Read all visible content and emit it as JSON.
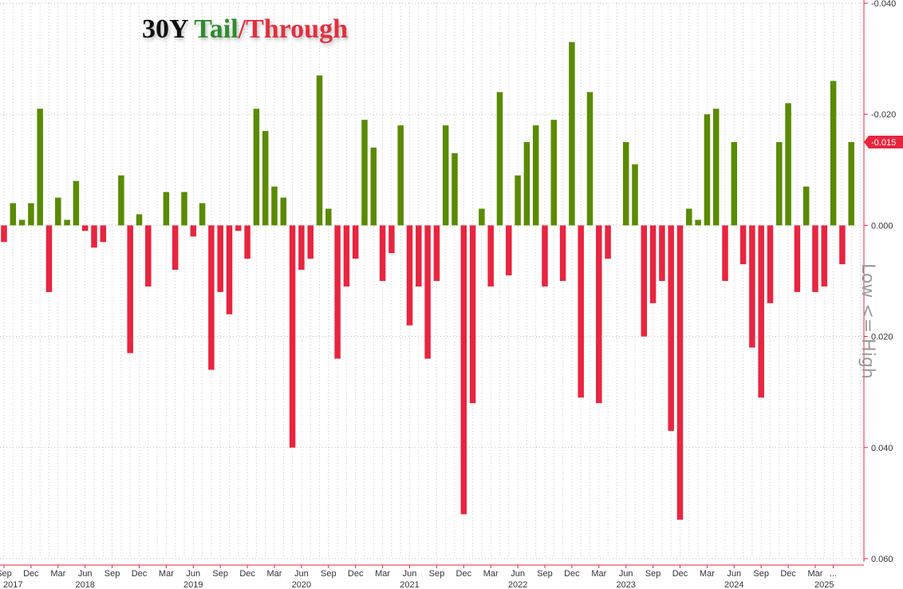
{
  "title": {
    "part1": "30Y",
    "part2": "Tail",
    "sep": "/",
    "part3": "Through"
  },
  "side_label": "Low <= High",
  "chart_data": {
    "type": "bar",
    "title": "30Y Tail/Through",
    "ylabel": "Low <= High",
    "y_axis": {
      "inverted": true,
      "range": [
        -0.04,
        0.06
      ],
      "ticks": [
        -0.04,
        -0.02,
        0.0,
        0.02,
        0.04,
        0.06
      ],
      "tick_labels": [
        "-0.040",
        "-0.020",
        "0.000",
        "0.020",
        "0.040",
        "0.060"
      ],
      "position": "right"
    },
    "last_value_label": "-0.015",
    "colors": {
      "negative": "#5a8a00",
      "positive": "#e8253f",
      "last_tag": "#e8253f"
    },
    "grid": true,
    "x_axis": {
      "month_labels": [
        {
          "label": "Sep",
          "i": 0
        },
        {
          "label": "Dec",
          "i": 3
        },
        {
          "label": "Mar",
          "i": 6
        },
        {
          "label": "Jun",
          "i": 9
        },
        {
          "label": "Sep",
          "i": 12
        },
        {
          "label": "Dec",
          "i": 15
        },
        {
          "label": "Mar",
          "i": 18
        },
        {
          "label": "Jun",
          "i": 21
        },
        {
          "label": "Sep",
          "i": 24
        },
        {
          "label": "Dec",
          "i": 27
        },
        {
          "label": "Mar",
          "i": 30
        },
        {
          "label": "Jun",
          "i": 33
        },
        {
          "label": "Sep",
          "i": 36
        },
        {
          "label": "Dec",
          "i": 39
        },
        {
          "label": "Mar",
          "i": 42
        },
        {
          "label": "Jun",
          "i": 45
        },
        {
          "label": "Sep",
          "i": 48
        },
        {
          "label": "Dec",
          "i": 51
        },
        {
          "label": "Mar",
          "i": 54
        },
        {
          "label": "Jun",
          "i": 57
        },
        {
          "label": "Sep",
          "i": 60
        },
        {
          "label": "Dec",
          "i": 63
        },
        {
          "label": "Mar",
          "i": 66
        },
        {
          "label": "Jun",
          "i": 69
        },
        {
          "label": "Sep",
          "i": 72
        },
        {
          "label": "Dec",
          "i": 75
        },
        {
          "label": "Mar",
          "i": 78
        },
        {
          "label": "Jun",
          "i": 81
        },
        {
          "label": "Sep",
          "i": 84
        },
        {
          "label": "Dec",
          "i": 87
        },
        {
          "label": "Mar",
          "i": 90
        },
        {
          "label": "...",
          "i": 92
        }
      ],
      "year_labels": [
        {
          "label": "2017",
          "i": 1
        },
        {
          "label": "2018",
          "i": 9
        },
        {
          "label": "2019",
          "i": 21
        },
        {
          "label": "2020",
          "i": 33
        },
        {
          "label": "2021",
          "i": 45
        },
        {
          "label": "2022",
          "i": 57
        },
        {
          "label": "2023",
          "i": 69
        },
        {
          "label": "2024",
          "i": 81
        },
        {
          "label": "2025",
          "i": 91
        }
      ]
    },
    "values": [
      0.003,
      -0.004,
      -0.001,
      -0.004,
      -0.021,
      0.012,
      -0.005,
      -0.001,
      -0.008,
      0.001,
      0.004,
      0.003,
      0.0,
      -0.009,
      0.023,
      -0.002,
      0.011,
      0.0,
      -0.006,
      0.008,
      -0.006,
      0.002,
      -0.004,
      0.026,
      0.012,
      0.016,
      0.001,
      0.006,
      -0.021,
      -0.017,
      -0.007,
      -0.005,
      0.04,
      0.008,
      0.006,
      -0.027,
      -0.003,
      0.024,
      0.011,
      0.006,
      -0.019,
      -0.014,
      0.01,
      0.005,
      -0.018,
      0.018,
      0.011,
      0.024,
      0.01,
      -0.018,
      -0.013,
      0.052,
      0.032,
      -0.003,
      0.011,
      -0.024,
      0.009,
      -0.009,
      -0.015,
      -0.018,
      0.011,
      -0.019,
      0.01,
      -0.033,
      0.031,
      -0.024,
      0.032,
      0.006,
      0.0,
      -0.015,
      -0.011,
      0.02,
      0.014,
      0.01,
      0.037,
      0.053,
      -0.003,
      -0.001,
      -0.02,
      -0.021,
      0.01,
      -0.015,
      0.007,
      0.022,
      0.031,
      0.014,
      -0.015,
      -0.022,
      0.012,
      -0.007,
      0.012,
      0.011,
      -0.026,
      0.007,
      -0.015
    ]
  }
}
